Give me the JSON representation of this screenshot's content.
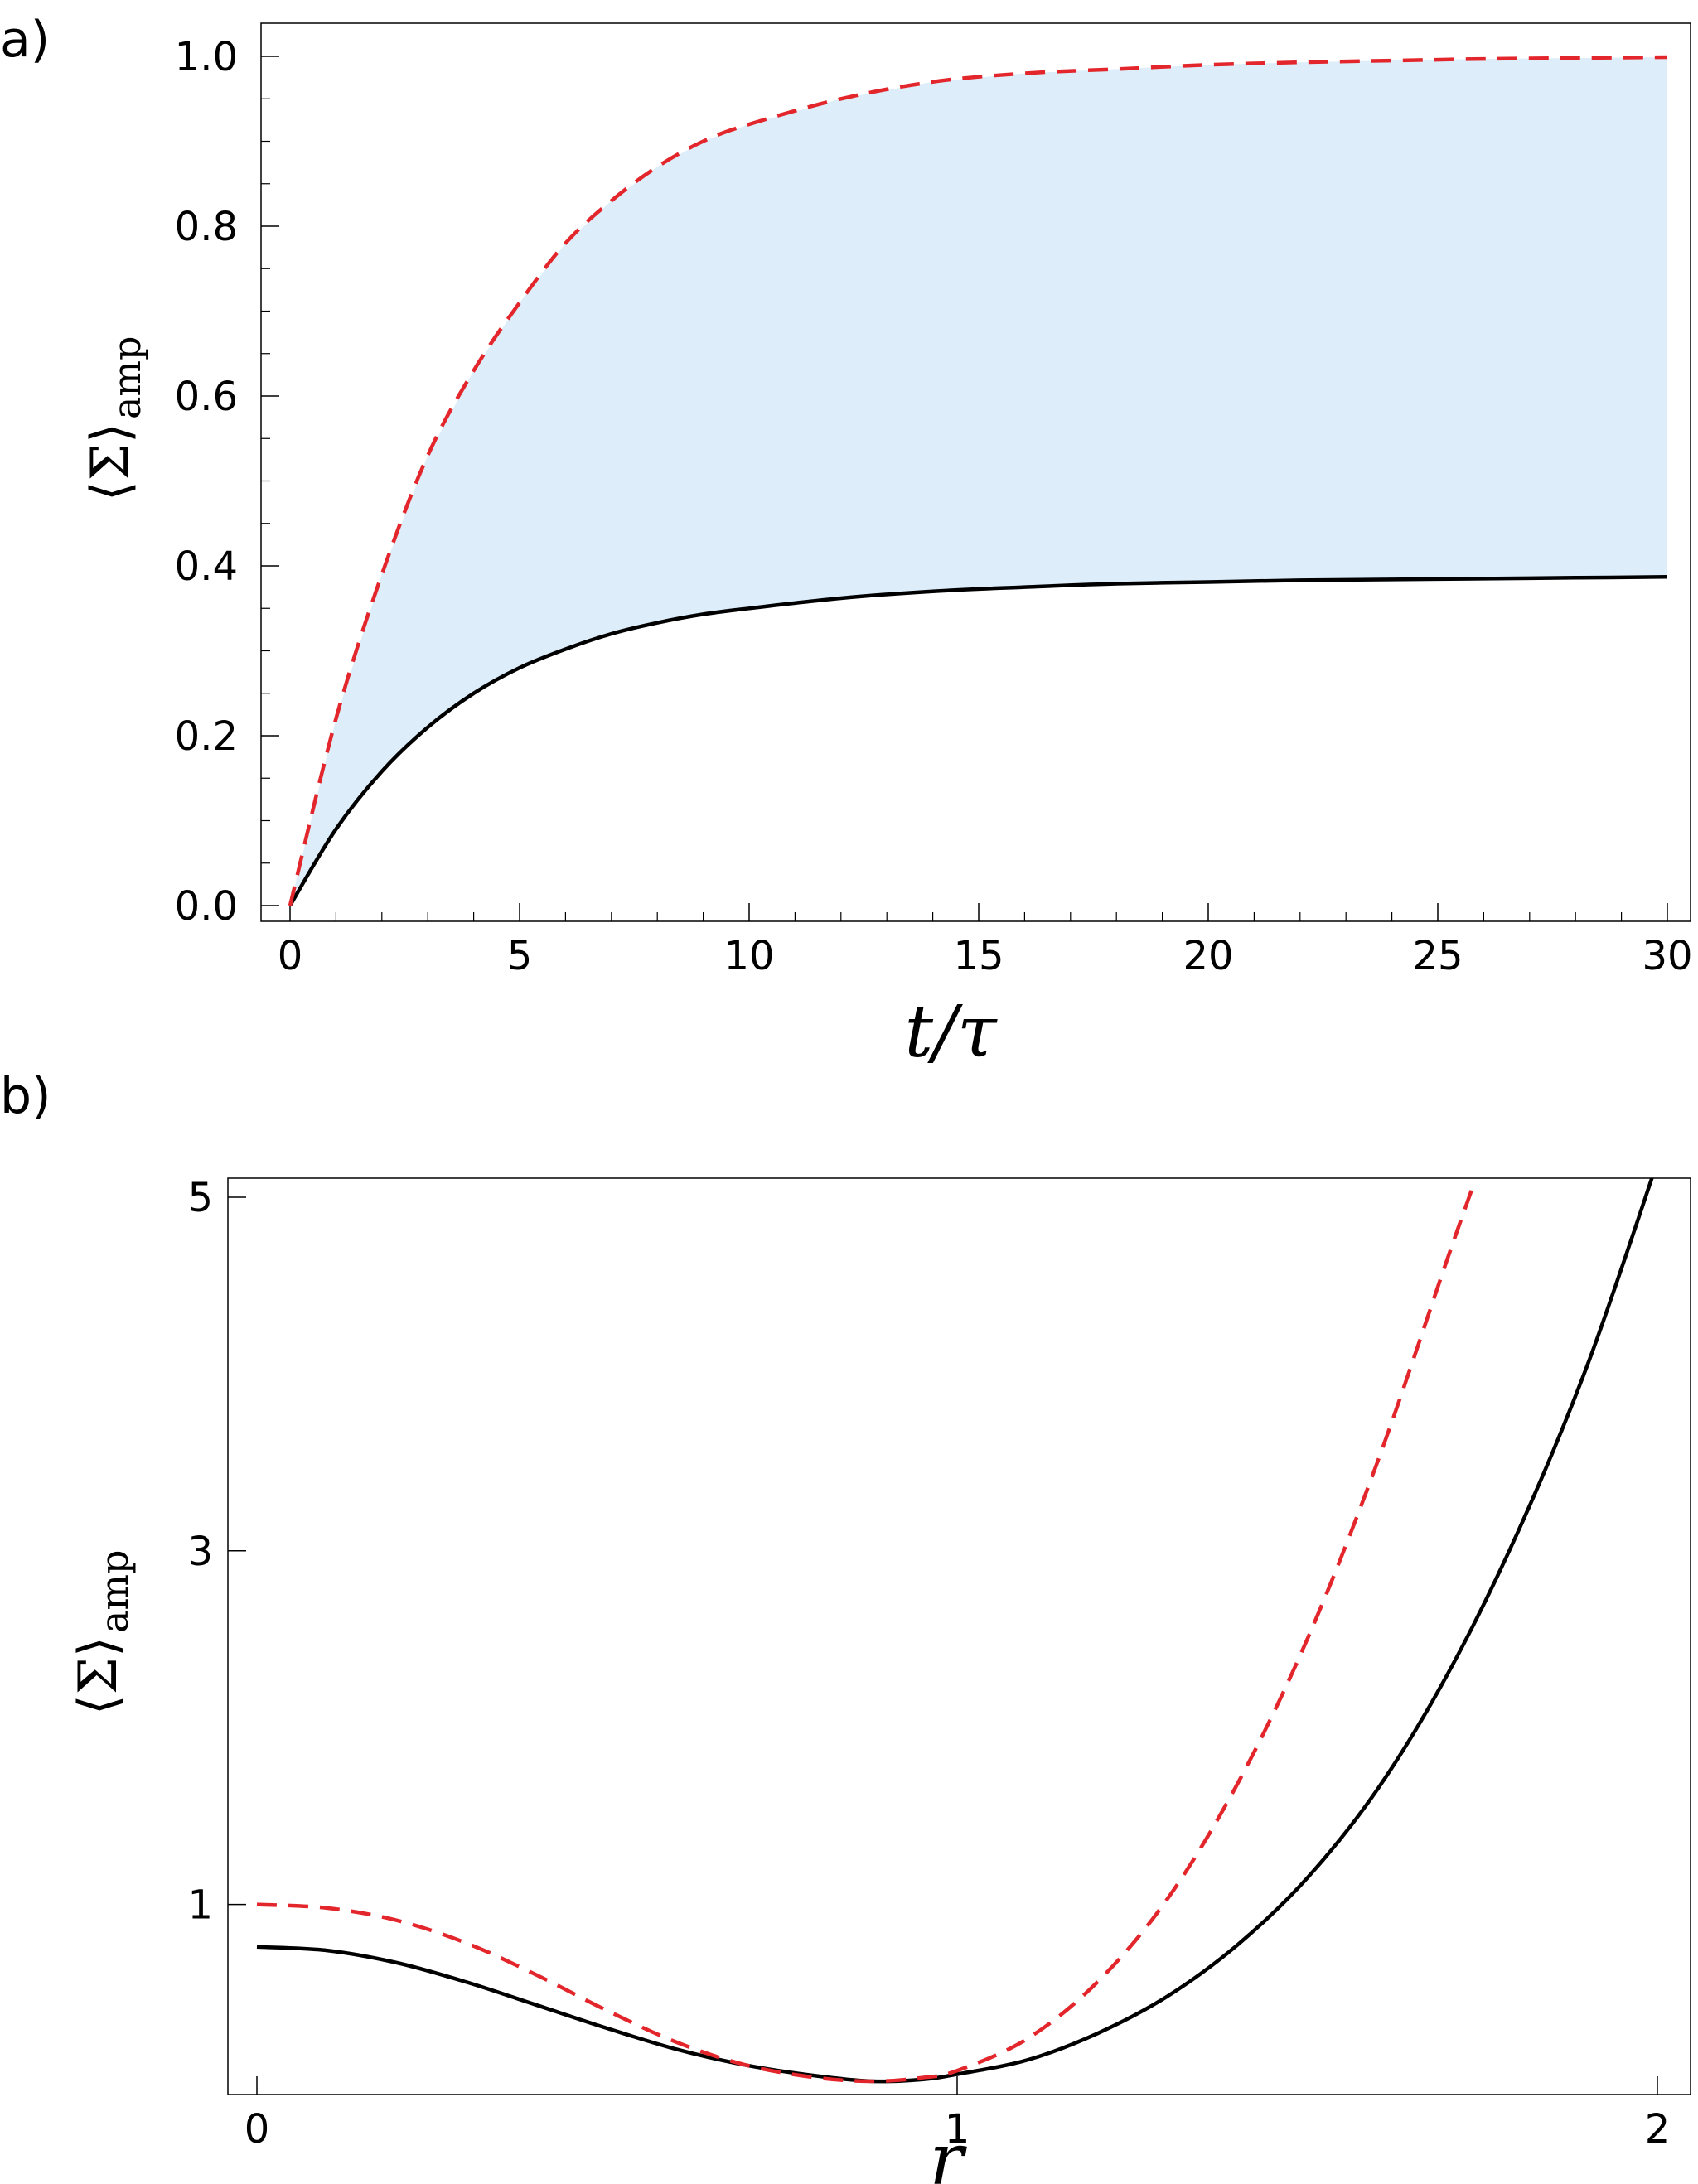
{
  "colors": {
    "upper_curve": "#e3262b",
    "lower_curve": "#000000",
    "shade": "#ddeefa"
  },
  "chart_data": [
    {
      "panel": "a)",
      "type": "line",
      "xlabel": "t/τ",
      "ylabel": "⟨Σ⟩",
      "ylabel_sub": "amp",
      "xlim": [
        0,
        30
      ],
      "ylim": [
        0,
        1.0
      ],
      "xticks": [
        0,
        5,
        10,
        15,
        20,
        25,
        30
      ],
      "xtick_labels": [
        "0",
        "5",
        "10",
        "15",
        "20",
        "25",
        "30"
      ],
      "yticks": [
        0.0,
        0.2,
        0.4,
        0.6,
        0.8,
        1.0
      ],
      "ytick_labels": [
        "0.0",
        "0.2",
        "0.4",
        "0.6",
        "0.8",
        "1.0"
      ],
      "shaded_between_series": true,
      "series": [
        {
          "style": "dashed",
          "color": "#e3262b",
          "x": [
            0,
            1,
            2,
            3,
            4,
            5,
            6,
            7,
            8,
            9,
            10,
            12,
            14,
            16,
            18,
            20,
            22,
            24,
            26,
            28,
            30
          ],
          "y": [
            0.0,
            0.22,
            0.39,
            0.53,
            0.63,
            0.71,
            0.78,
            0.83,
            0.87,
            0.9,
            0.92,
            0.95,
            0.97,
            0.98,
            0.985,
            0.99,
            0.993,
            0.995,
            0.997,
            0.998,
            0.999
          ]
        },
        {
          "style": "solid",
          "color": "#000000",
          "x": [
            0,
            1,
            2,
            3,
            4,
            5,
            6,
            7,
            8,
            9,
            10,
            12,
            14,
            16,
            18,
            20,
            22,
            24,
            26,
            28,
            30
          ],
          "y": [
            0.0,
            0.09,
            0.158,
            0.21,
            0.25,
            0.28,
            0.302,
            0.32,
            0.333,
            0.343,
            0.35,
            0.362,
            0.37,
            0.375,
            0.379,
            0.381,
            0.383,
            0.384,
            0.385,
            0.386,
            0.387
          ]
        }
      ]
    },
    {
      "panel": "b)",
      "type": "line",
      "xlabel": "r",
      "ylabel": "⟨Σ⟩",
      "ylabel_sub": "amp",
      "xlim": [
        0,
        2
      ],
      "ylim": [
        0,
        5
      ],
      "xticks": [
        0,
        1,
        2
      ],
      "xtick_labels": [
        "0",
        "1",
        "2"
      ],
      "yticks": [
        1,
        3,
        5
      ],
      "ytick_labels": [
        "1",
        "3",
        "5"
      ],
      "series": [
        {
          "style": "dashed",
          "color": "#e3262b",
          "x": [
            0,
            0.1,
            0.2,
            0.3,
            0.4,
            0.5,
            0.6,
            0.7,
            0.8,
            0.88,
            0.95,
            1.0,
            1.1,
            1.2,
            1.3,
            1.4,
            1.5,
            1.6,
            1.7,
            1.74
          ],
          "y": [
            1.0,
            0.98,
            0.91,
            0.78,
            0.6,
            0.4,
            0.22,
            0.09,
            0.02,
            0.0,
            0.02,
            0.06,
            0.24,
            0.56,
            1.03,
            1.68,
            2.5,
            3.5,
            4.65,
            5.1
          ]
        },
        {
          "style": "solid",
          "color": "#000000",
          "x": [
            0,
            0.1,
            0.2,
            0.3,
            0.4,
            0.5,
            0.6,
            0.7,
            0.8,
            0.88,
            0.95,
            1.0,
            1.1,
            1.2,
            1.3,
            1.4,
            1.5,
            1.6,
            1.7,
            1.8,
            1.9,
            2.0
          ],
          "y": [
            0.76,
            0.74,
            0.67,
            0.56,
            0.43,
            0.3,
            0.18,
            0.09,
            0.03,
            0.0,
            0.01,
            0.04,
            0.12,
            0.27,
            0.48,
            0.77,
            1.15,
            1.65,
            2.3,
            3.1,
            4.05,
            5.2
          ]
        }
      ]
    }
  ]
}
